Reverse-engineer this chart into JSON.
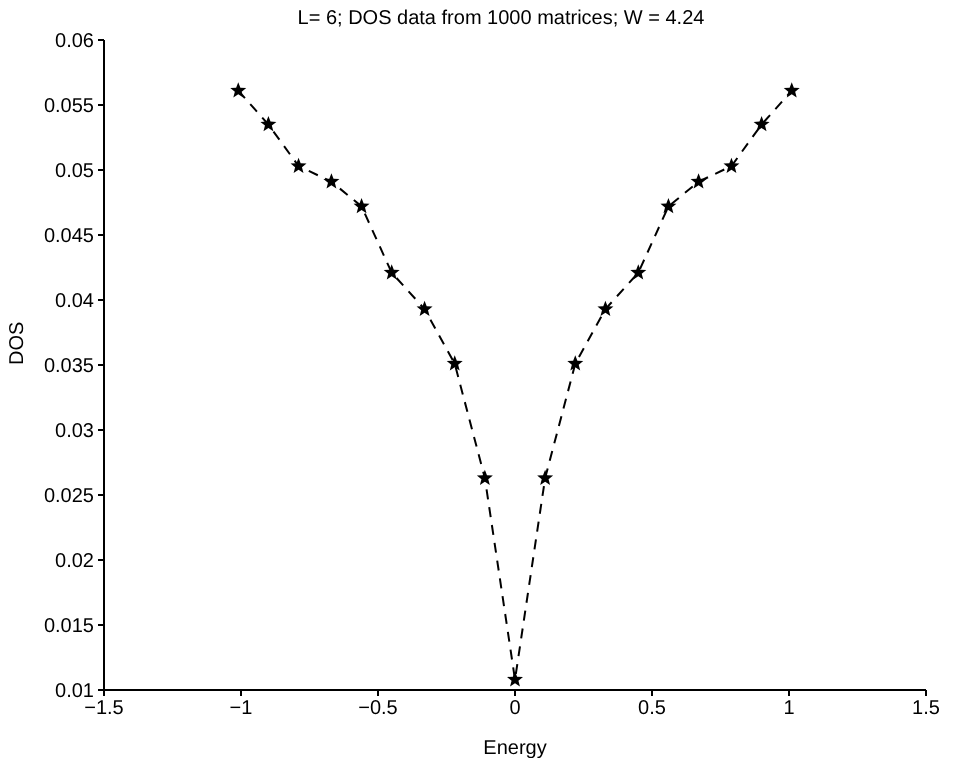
{
  "chart_data": {
    "type": "line",
    "title": "L= 6; DOS data from 1000 matrices; W = 4.24",
    "xlabel": "Energy",
    "ylabel": "DOS",
    "x": [
      -1.01,
      -0.9,
      -0.79,
      -0.67,
      -0.56,
      -0.45,
      -0.33,
      -0.22,
      -0.11,
      0,
      0.11,
      0.22,
      0.33,
      0.45,
      0.56,
      0.67,
      0.79,
      0.9,
      1.01
    ],
    "series": [
      {
        "color": "#000000",
        "values": [
          0.0561,
          0.0535,
          0.0503,
          0.0491,
          0.0472,
          0.0421,
          0.0393,
          0.0351,
          0.0263,
          0.0108,
          0.0263,
          0.0351,
          0.0393,
          0.0421,
          0.0472,
          0.0491,
          0.0503,
          0.0535,
          0.0561
        ]
      }
    ],
    "xlim": [
      -1.5,
      1.5
    ],
    "xticks": [
      -1.5,
      -1,
      -0.5,
      0,
      0.5,
      1,
      1.5
    ],
    "ylim": [
      0.01,
      0.06
    ],
    "yticks": [
      0.01,
      0.015,
      0.02,
      0.025,
      0.03,
      0.035,
      0.04,
      0.045,
      0.05,
      0.055,
      0.06
    ],
    "grid": false,
    "legend": false,
    "marker": "star",
    "line_style": "dashed"
  }
}
